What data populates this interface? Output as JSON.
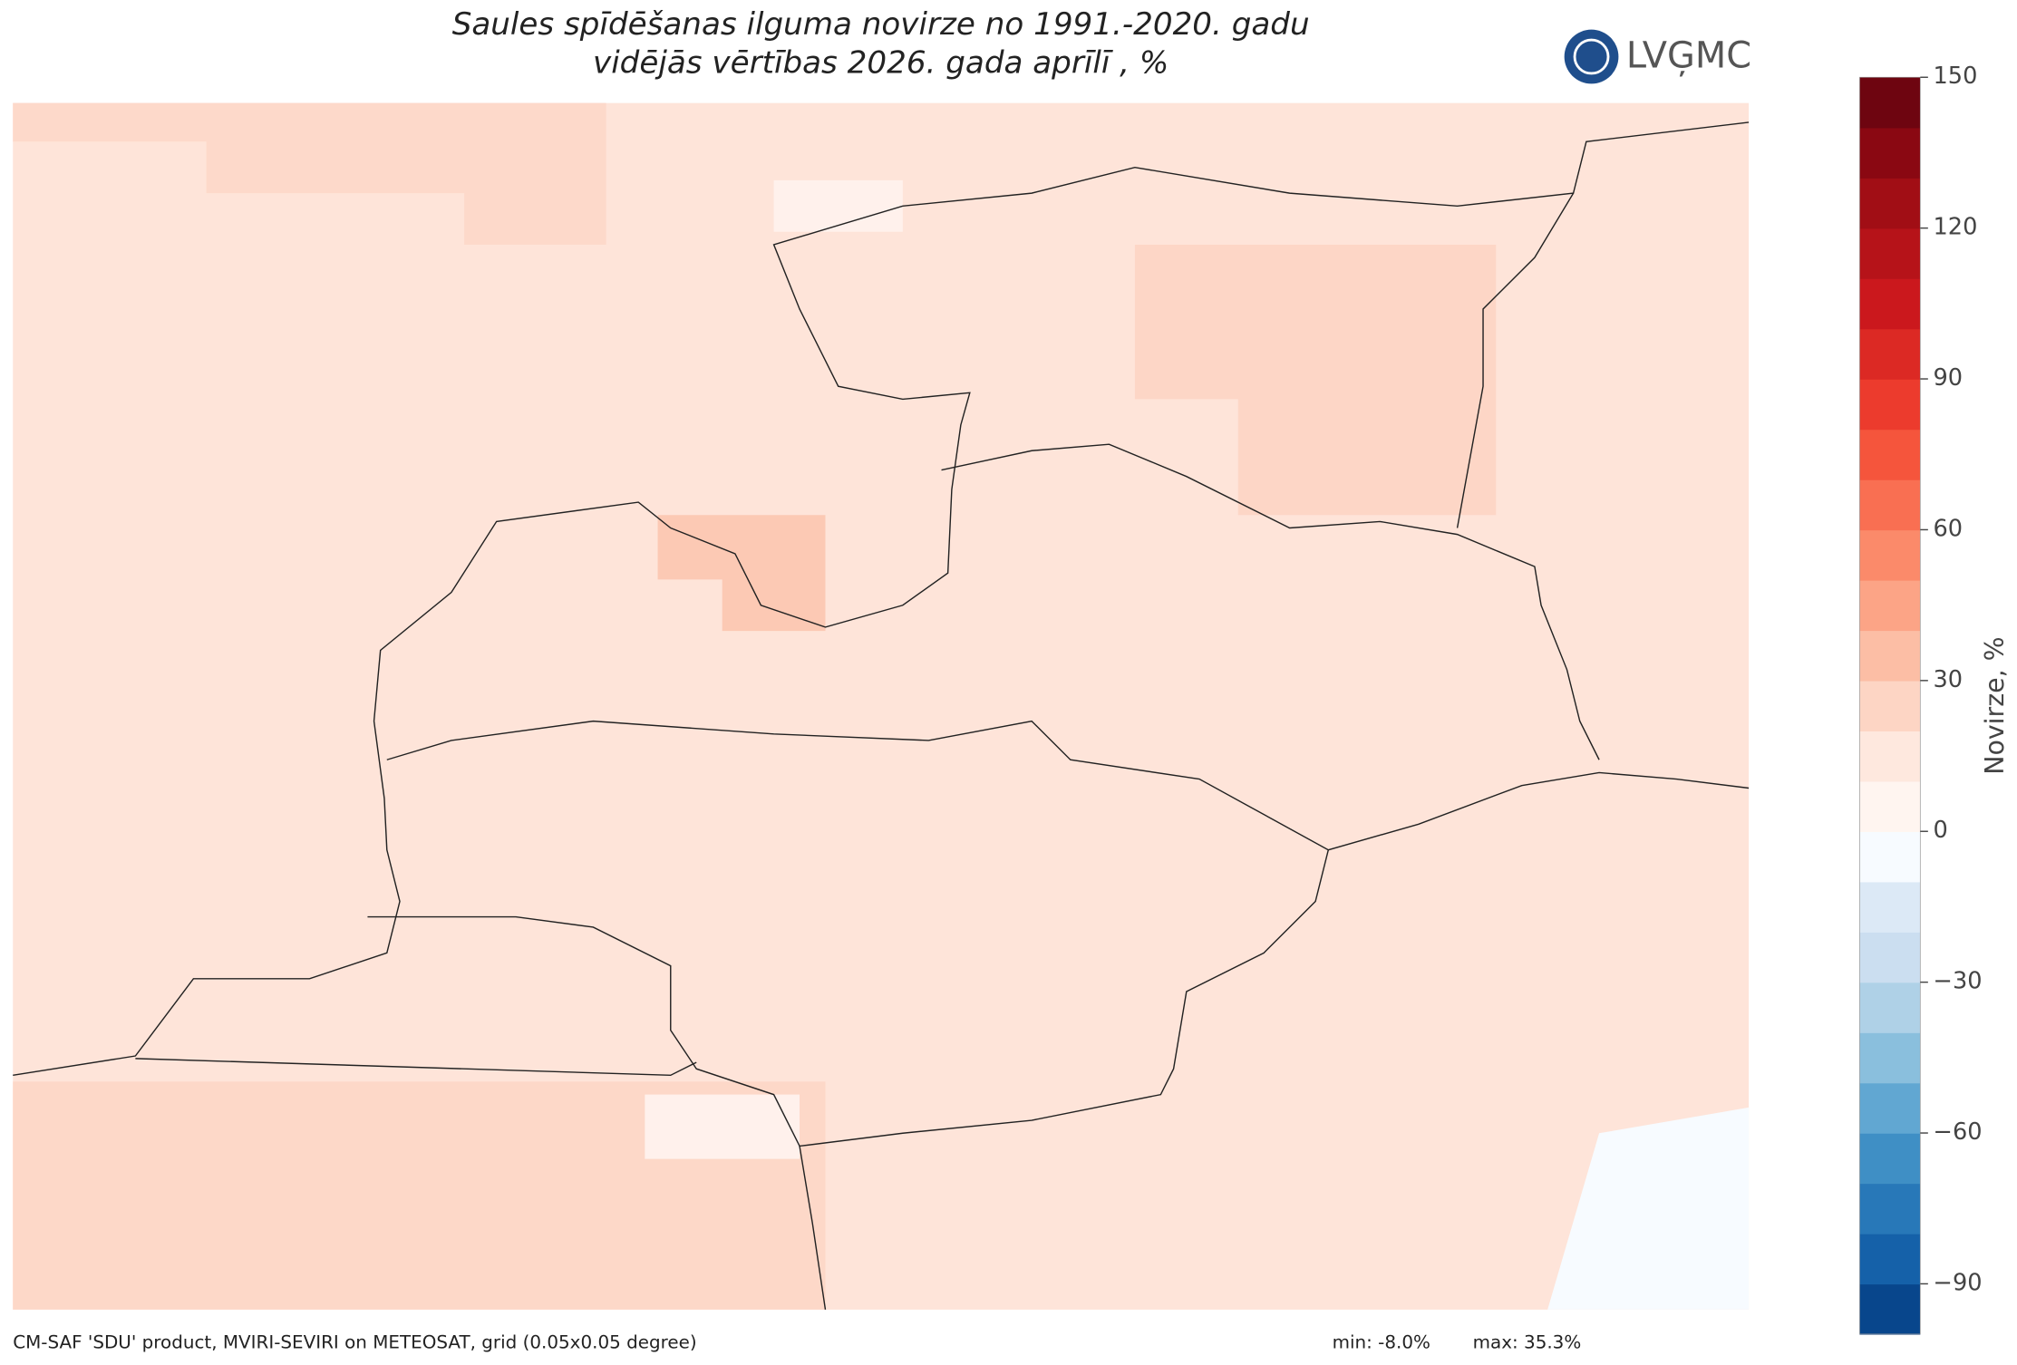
{
  "title": [
    "Saules spīdēšanas ilguma novirze no 1991.-2020. gadu",
    "vidējās vērtības 2026. gada aprīlī , %"
  ],
  "logo": "LVĢMC",
  "colorbar": {
    "label": "Novirze, %",
    "lim": [
      -100,
      150
    ],
    "ticks": [
      {
        "value": -90,
        "label": "−90"
      },
      {
        "value": -60,
        "label": "−60"
      },
      {
        "value": -30,
        "label": "−30"
      },
      0,
      30,
      60,
      90,
      120,
      150
    ],
    "colors": [
      "#08468c",
      "#1561a9",
      "#2878b8",
      "#3f8fc5",
      "#61a7d2",
      "#8abfdd",
      "#afd1e7",
      "#cbdef0",
      "#dce9f6",
      "#f7fbff",
      "#fff5f0",
      "#fee8de",
      "#fdd5c4",
      "#fcbea5",
      "#fca486",
      "#fb8a6a",
      "#f96f52",
      "#f5553c",
      "#ec3b2d",
      "#dc2924",
      "#cb181d",
      "#b61319",
      "#a10e15",
      "#8a0812",
      "#6e0510"
    ]
  },
  "footer": {
    "source": "CM-SAF 'SDU' product, MVIRI-SEVIRI on METEOSAT, grid (0.05x0.05 degree)",
    "min": "min: -8.0%",
    "max": "max: 35.3%"
  }
}
